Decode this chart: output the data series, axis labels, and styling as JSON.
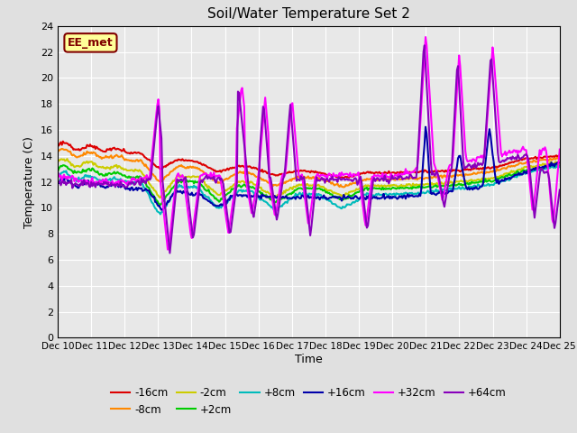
{
  "title": "Soil/Water Temperature Set 2",
  "xlabel": "Time",
  "ylabel": "Temperature (C)",
  "ylim": [
    0,
    24
  ],
  "yticks": [
    0,
    2,
    4,
    6,
    8,
    10,
    12,
    14,
    16,
    18,
    20,
    22,
    24
  ],
  "x_labels": [
    "Dec 10",
    "Dec 11",
    "Dec 12",
    "Dec 13",
    "Dec 14",
    "Dec 15",
    "Dec 16",
    "Dec 17",
    "Dec 18",
    "Dec 19",
    "Dec 20",
    "Dec 21",
    "Dec 22",
    "Dec 23",
    "Dec 24",
    "Dec 25"
  ],
  "background_color": "#e0e0e0",
  "plot_bg_color": "#e8e8e8",
  "annotation_text": "EE_met",
  "annotation_bg": "#ffff99",
  "annotation_border": "#800000",
  "series": {
    "-16cm": {
      "color": "#dd0000",
      "lw": 1.5
    },
    "-8cm": {
      "color": "#ff8800",
      "lw": 1.5
    },
    "-2cm": {
      "color": "#cccc00",
      "lw": 1.5
    },
    "+2cm": {
      "color": "#00cc00",
      "lw": 1.5
    },
    "+8cm": {
      "color": "#00bbbb",
      "lw": 1.5
    },
    "+16cm": {
      "color": "#0000aa",
      "lw": 1.5
    },
    "+32cm": {
      "color": "#ff00ff",
      "lw": 1.5
    },
    "+64cm": {
      "color": "#8800bb",
      "lw": 1.5
    }
  },
  "n_points": 480
}
